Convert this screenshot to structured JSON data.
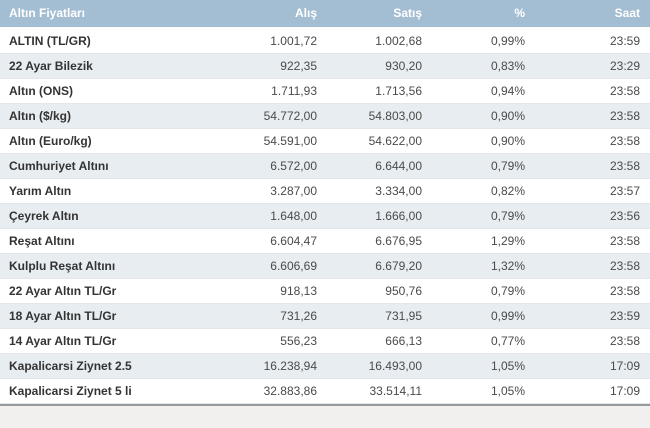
{
  "colors": {
    "header_bg": "#a3bdd2",
    "header_text": "#ffffff",
    "row_alt_bg": "#e8edf1",
    "label_text": "#333333",
    "value_text": "#4a4a4a",
    "bottom_border": "#97999b",
    "page_bg": "#f2f0ee"
  },
  "table": {
    "headers": {
      "title": "Altın Fiyatları",
      "buy": "Alış",
      "sell": "Satış",
      "percent": "%",
      "time": "Saat"
    },
    "rows": [
      {
        "name": "ALTIN (TL/GR)",
        "buy": "1.001,72",
        "sell": "1.002,68",
        "percent": "0,99%",
        "time": "23:59"
      },
      {
        "name": "22 Ayar Bilezik",
        "buy": "922,35",
        "sell": "930,20",
        "percent": "0,83%",
        "time": "23:29"
      },
      {
        "name": "Altın (ONS)",
        "buy": "1.711,93",
        "sell": "1.713,56",
        "percent": "0,94%",
        "time": "23:58"
      },
      {
        "name": "Altın ($/kg)",
        "buy": "54.772,00",
        "sell": "54.803,00",
        "percent": "0,90%",
        "time": "23:58"
      },
      {
        "name": "Altın (Euro/kg)",
        "buy": "54.591,00",
        "sell": "54.622,00",
        "percent": "0,90%",
        "time": "23:58"
      },
      {
        "name": "Cumhuriyet Altını",
        "buy": "6.572,00",
        "sell": "6.644,00",
        "percent": "0,79%",
        "time": "23:58"
      },
      {
        "name": "Yarım Altın",
        "buy": "3.287,00",
        "sell": "3.334,00",
        "percent": "0,82%",
        "time": "23:57"
      },
      {
        "name": "Çeyrek Altın",
        "buy": "1.648,00",
        "sell": "1.666,00",
        "percent": "0,79%",
        "time": "23:56"
      },
      {
        "name": "Reşat Altını",
        "buy": "6.604,47",
        "sell": "6.676,95",
        "percent": "1,29%",
        "time": "23:58"
      },
      {
        "name": "Kulplu Reşat Altını",
        "buy": "6.606,69",
        "sell": "6.679,20",
        "percent": "1,32%",
        "time": "23:58"
      },
      {
        "name": "22 Ayar Altın TL/Gr",
        "buy": "918,13",
        "sell": "950,76",
        "percent": "0,79%",
        "time": "23:58"
      },
      {
        "name": "18 Ayar Altın TL/Gr",
        "buy": "731,26",
        "sell": "731,95",
        "percent": "0,99%",
        "time": "23:59"
      },
      {
        "name": "14 Ayar Altın TL/Gr",
        "buy": "556,23",
        "sell": "666,13",
        "percent": "0,77%",
        "time": "23:58"
      },
      {
        "name": "Kapalicarsi Ziynet 2.5",
        "buy": "16.238,94",
        "sell": "16.493,00",
        "percent": "1,05%",
        "time": "17:09"
      },
      {
        "name": "Kapalicarsi Ziynet 5 li",
        "buy": "32.883,86",
        "sell": "33.514,11",
        "percent": "1,05%",
        "time": "17:09"
      }
    ]
  }
}
